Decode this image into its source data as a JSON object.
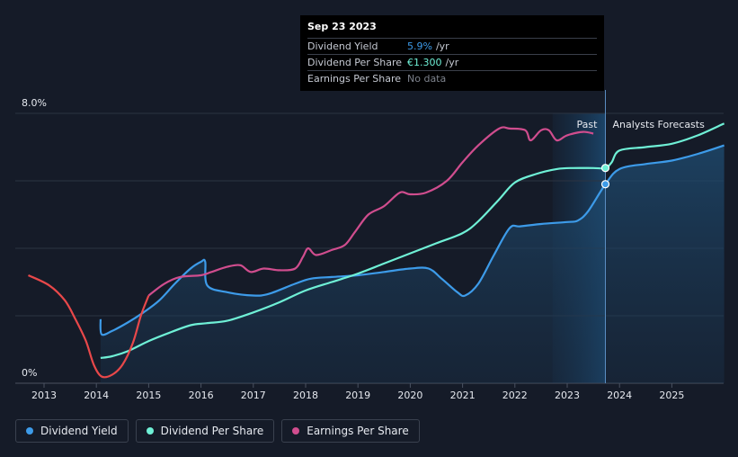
{
  "tooltip": {
    "date": "Sep 23 2023",
    "rows": [
      {
        "name": "Dividend Yield",
        "value": "5.9%",
        "unit": "/yr"
      },
      {
        "name": "Dividend Per Share",
        "value": "€1.300",
        "unit": "/yr"
      },
      {
        "name": "Earnings Per Share",
        "value": "No data",
        "unit": ""
      }
    ]
  },
  "labels": {
    "past": "Past",
    "forecast": "Analysts Forecasts"
  },
  "legend": [
    {
      "label": "Dividend Yield",
      "color": "#3d9be9"
    },
    {
      "label": "Dividend Per Share",
      "color": "#6ff0d6"
    },
    {
      "label": "Earnings Per Share",
      "color": "#d04d8e"
    }
  ],
  "chart_data": {
    "type": "line",
    "x_range": [
      2012.7,
      2026.0
    ],
    "ylim": [
      0,
      8.0
    ],
    "y_ticks": [
      "0%",
      "8.0%"
    ],
    "x_ticks": [
      "2013",
      "2014",
      "2015",
      "2016",
      "2017",
      "2018",
      "2019",
      "2020",
      "2021",
      "2022",
      "2023",
      "2024",
      "2025"
    ],
    "past_forecast_boundary": 2023.73,
    "shaded_region_start": 2022.72,
    "series": [
      {
        "name": "Dividend Yield",
        "color": "#3d9be9",
        "x": [
          2014.08,
          2014.1,
          2014.3,
          2014.6,
          2014.9,
          2015.2,
          2015.5,
          2015.8,
          2016.0,
          2016.08,
          2016.12,
          2016.5,
          2017.0,
          2017.3,
          2017.8,
          2018.1,
          2018.5,
          2019.0,
          2019.5,
          2020.0,
          2020.35,
          2020.6,
          2020.9,
          2021.05,
          2021.3,
          2021.6,
          2021.9,
          2022.1,
          2022.5,
          2023.0,
          2023.2,
          2023.4,
          2023.73,
          2024.0,
          2024.5,
          2025.0,
          2025.5,
          2026.0
        ],
        "y": [
          1.9,
          1.45,
          1.55,
          1.8,
          2.1,
          2.45,
          2.95,
          3.4,
          3.6,
          3.6,
          2.9,
          2.7,
          2.6,
          2.65,
          2.95,
          3.1,
          3.15,
          3.2,
          3.3,
          3.4,
          3.4,
          3.1,
          2.7,
          2.6,
          2.95,
          3.8,
          4.6,
          4.65,
          4.72,
          4.78,
          4.82,
          5.1,
          5.9,
          6.35,
          6.5,
          6.6,
          6.8,
          7.05
        ]
      },
      {
        "name": "Dividend Per Share",
        "color": "#6ff0d6",
        "x": [
          2014.08,
          2014.3,
          2014.6,
          2015.0,
          2015.4,
          2015.8,
          2016.1,
          2016.5,
          2017.0,
          2017.5,
          2018.0,
          2018.5,
          2019.0,
          2019.5,
          2020.0,
          2020.5,
          2021.0,
          2021.3,
          2021.7,
          2022.0,
          2022.4,
          2022.8,
          2023.1,
          2023.5,
          2023.73,
          2023.85,
          2024.0,
          2024.5,
          2025.0,
          2025.5,
          2026.0
        ],
        "y": [
          0.75,
          0.8,
          0.95,
          1.25,
          1.5,
          1.72,
          1.78,
          1.85,
          2.1,
          2.4,
          2.75,
          3.0,
          3.25,
          3.55,
          3.85,
          4.15,
          4.45,
          4.8,
          5.45,
          5.95,
          6.2,
          6.35,
          6.38,
          6.38,
          6.38,
          6.55,
          6.9,
          7.0,
          7.1,
          7.35,
          7.7
        ]
      },
      {
        "name": "Earnings Per Share",
        "color": "#d04d8e",
        "x": [
          2012.7,
          2013.1,
          2013.4,
          2013.6,
          2013.8,
          2013.95,
          2014.1,
          2014.3,
          2014.5,
          2014.7,
          2014.85,
          2015.0,
          2015.3,
          2015.6,
          2016.0,
          2016.2,
          2016.5,
          2016.75,
          2016.95,
          2017.2,
          2017.5,
          2017.8,
          2017.95,
          2018.05,
          2018.2,
          2018.5,
          2018.75,
          2018.95,
          2019.2,
          2019.5,
          2019.8,
          2020.0,
          2020.3,
          2020.7,
          2021.0,
          2021.3,
          2021.7,
          2021.9,
          2022.2,
          2022.3,
          2022.5,
          2022.65,
          2022.8,
          2023.0,
          2023.3,
          2023.5
        ],
        "y": [
          3.2,
          2.9,
          2.45,
          1.9,
          1.25,
          0.55,
          0.2,
          0.25,
          0.55,
          1.2,
          2.0,
          2.6,
          2.95,
          3.15,
          3.2,
          3.3,
          3.45,
          3.5,
          3.3,
          3.4,
          3.35,
          3.4,
          3.75,
          4.0,
          3.8,
          3.95,
          4.1,
          4.5,
          5.0,
          5.25,
          5.65,
          5.6,
          5.65,
          6.0,
          6.55,
          7.05,
          7.55,
          7.55,
          7.5,
          7.2,
          7.5,
          7.5,
          7.2,
          7.35,
          7.45,
          7.4
        ]
      }
    ]
  }
}
